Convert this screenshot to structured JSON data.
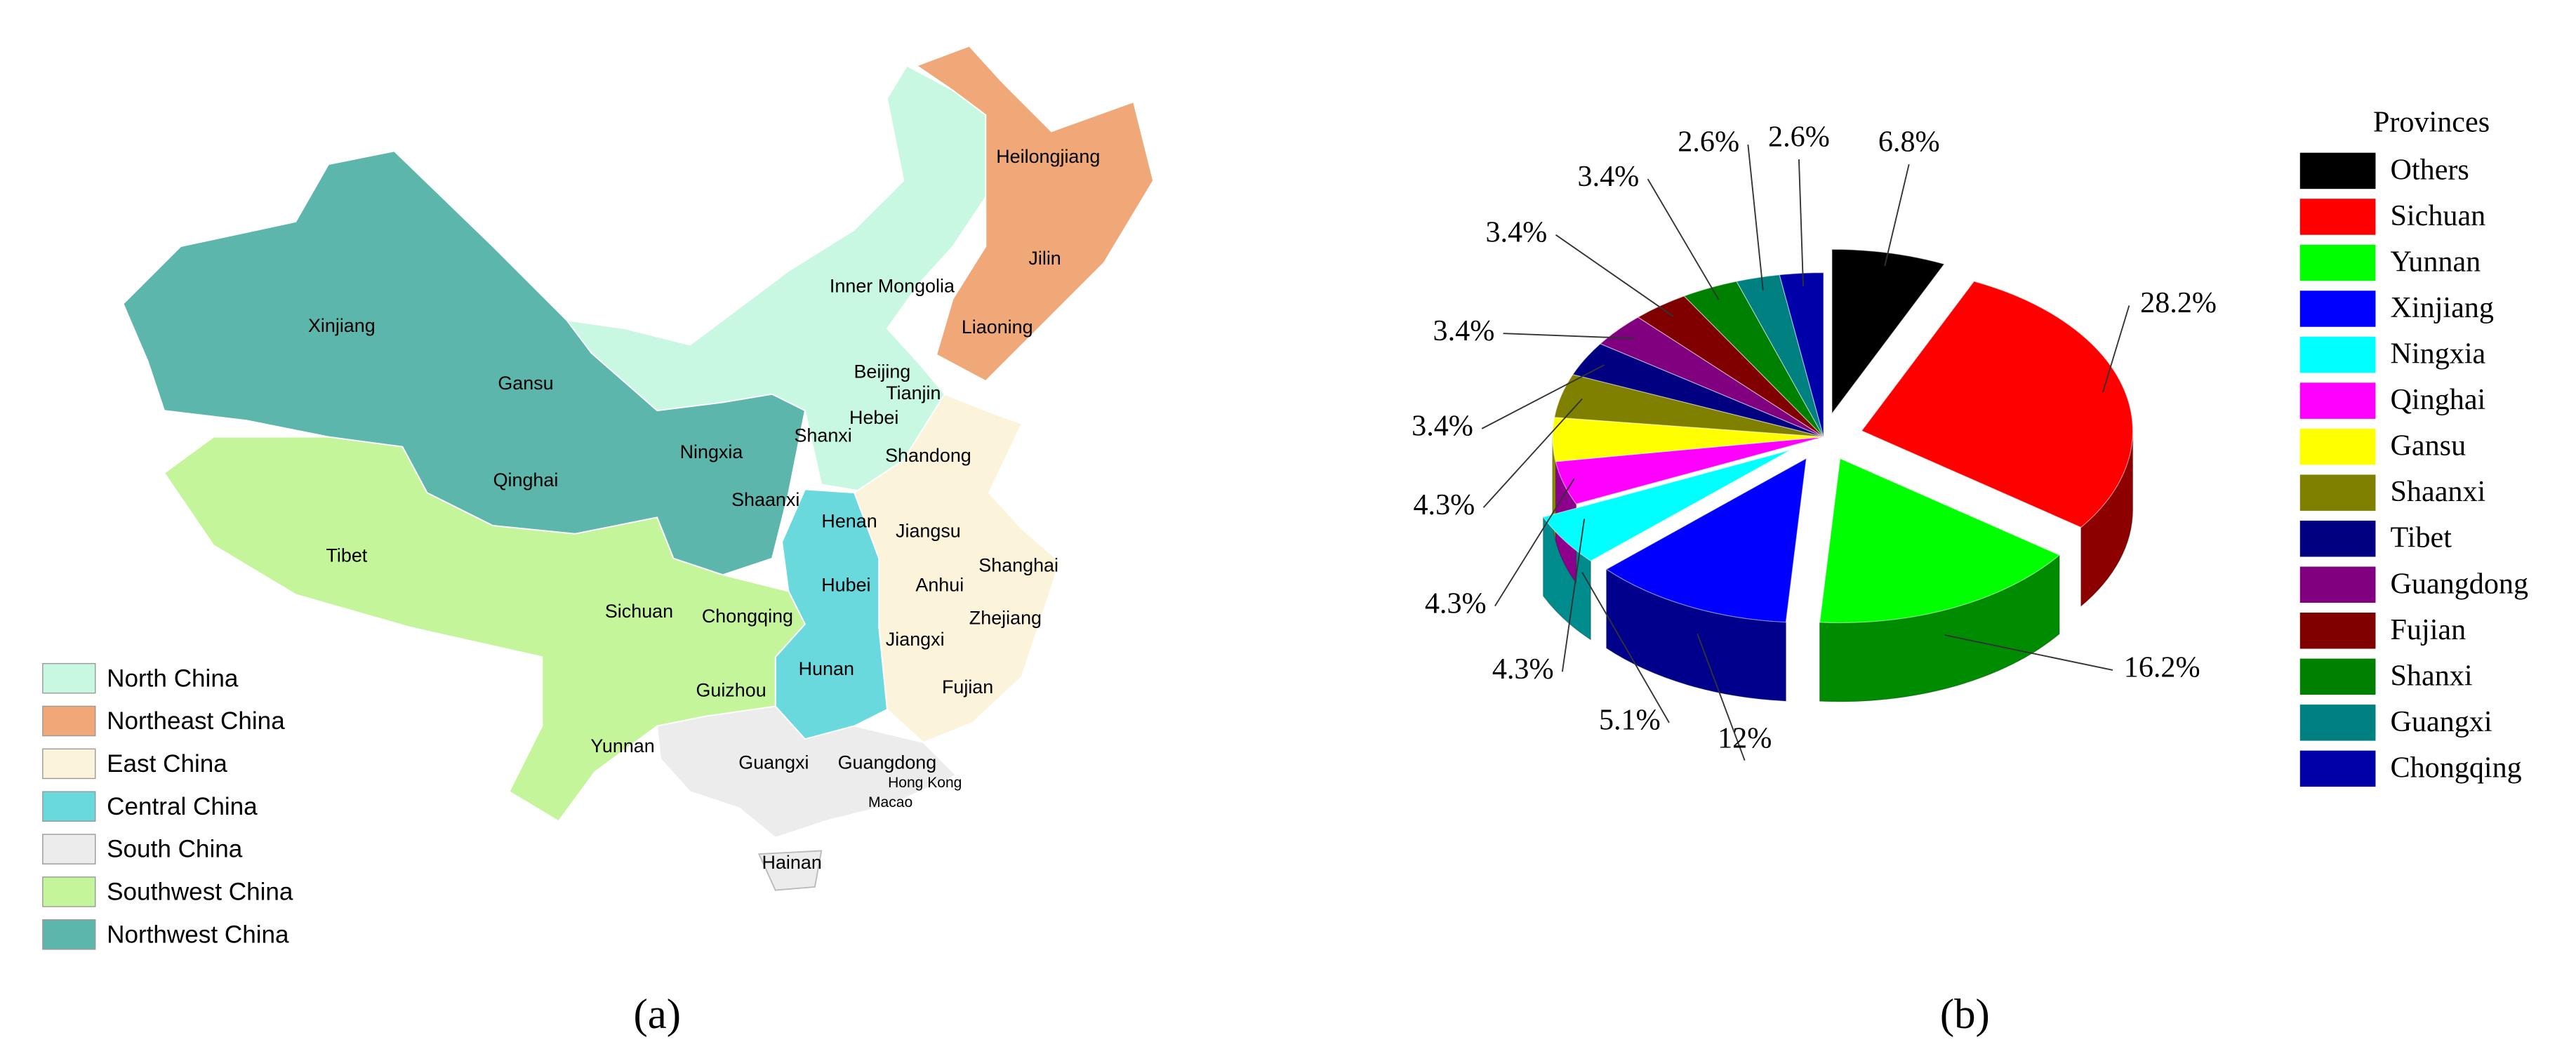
{
  "map": {
    "provinces": [
      "Xinjiang",
      "Gansu",
      "Qinghai",
      "Tibet",
      "Inner Mongolia",
      "Heilongjiang",
      "Jilin",
      "Liaoning",
      "Beijing",
      "Tianjin",
      "Hebei",
      "Shanxi",
      "Ningxia",
      "Shaanxi",
      "Shandong",
      "Henan",
      "Jiangsu",
      "Shanghai",
      "Anhui",
      "Hubei",
      "Chongqing",
      "Sichuan",
      "Zhejiang",
      "Jiangxi",
      "Hunan",
      "Guizhou",
      "Fujian",
      "Yunnan",
      "Guangxi",
      "Guangdong",
      "Hong Kong",
      "Macao",
      "Hainan"
    ],
    "legend": [
      {
        "name": "North China",
        "color": "#c8f7e2"
      },
      {
        "name": "Northeast China",
        "color": "#f0a878"
      },
      {
        "name": "East China",
        "color": "#fbf3da"
      },
      {
        "name": "Central China",
        "color": "#6ad9de"
      },
      {
        "name": "South China",
        "color": "#ececec"
      },
      {
        "name": "Southwest China",
        "color": "#c4f59a"
      },
      {
        "name": "Northwest China",
        "color": "#5db6ac"
      }
    ]
  },
  "chart_data": {
    "type": "pie",
    "legend_title": "Provinces",
    "categories": [
      "Others",
      "Sichuan",
      "Yunnan",
      "Xinjiang",
      "Ningxia",
      "Qinghai",
      "Gansu",
      "Shaanxi",
      "Tibet",
      "Guangdong",
      "Fujian",
      "Shanxi",
      "Guangxi",
      "Chongqing"
    ],
    "values": [
      6.8,
      28.2,
      16.2,
      12,
      5.1,
      4.3,
      4.3,
      4.3,
      3.4,
      3.4,
      3.4,
      3.4,
      2.6,
      2.6
    ],
    "value_labels": [
      "6.8%",
      "28.2%",
      "16.2%",
      "12%",
      "5.1%",
      "4.3%",
      "4.3%",
      "4.3%",
      "3.4%",
      "3.4%",
      "3.4%",
      "3.4%",
      "2.6%",
      "2.6%"
    ],
    "colors": [
      "#000000",
      "#ff0000",
      "#00ff00",
      "#0000ff",
      "#00ffff",
      "#ff00ff",
      "#ffff00",
      "#808000",
      "#000080",
      "#800080",
      "#800000",
      "#008000",
      "#008080",
      "#0000a8"
    ],
    "legend": "right"
  },
  "captions": [
    "(a)",
    "(b)"
  ]
}
